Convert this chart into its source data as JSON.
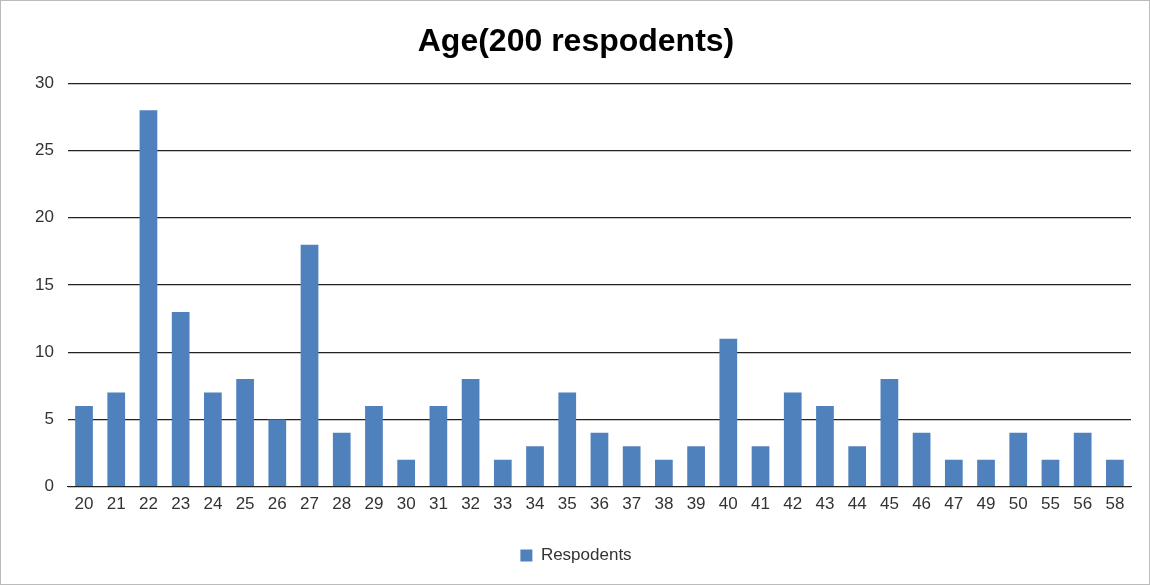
{
  "chart_data": {
    "type": "bar",
    "title": "Age(200 respodents)",
    "categories": [
      "20",
      "21",
      "22",
      "23",
      "24",
      "25",
      "26",
      "27",
      "28",
      "29",
      "30",
      "31",
      "32",
      "33",
      "34",
      "35",
      "36",
      "37",
      "38",
      "39",
      "40",
      "41",
      "42",
      "43",
      "44",
      "45",
      "46",
      "47",
      "49",
      "50",
      "55",
      "56",
      "58"
    ],
    "series": [
      {
        "name": "Respodents",
        "color": "#4f81bd",
        "values": [
          6,
          7,
          28,
          13,
          7,
          8,
          5,
          18,
          4,
          6,
          2,
          6,
          8,
          2,
          3,
          7,
          4,
          3,
          2,
          3,
          11,
          3,
          7,
          6,
          3,
          8,
          4,
          2,
          2,
          4,
          2,
          4,
          2
        ]
      }
    ],
    "ylim": [
      0,
      30
    ],
    "yticks": [
      0,
      5,
      10,
      15,
      20,
      25,
      30
    ],
    "grid": "y",
    "legend": "bottom"
  }
}
